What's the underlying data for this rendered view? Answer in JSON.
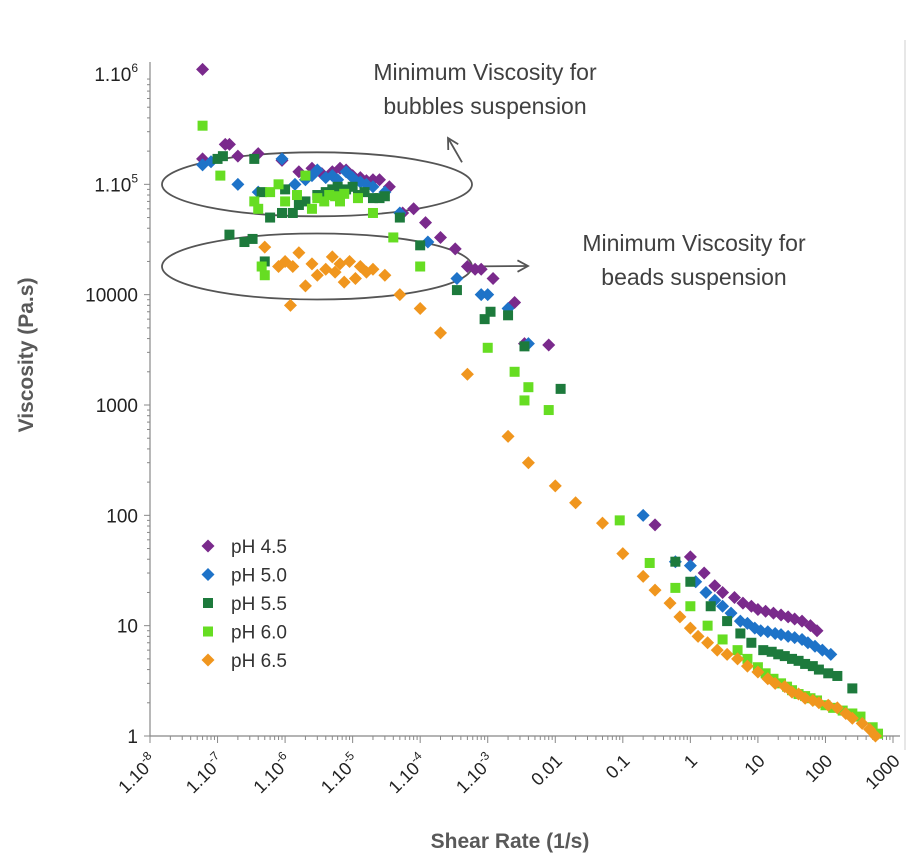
{
  "chart_data": {
    "type": "scatter",
    "title": "",
    "xlabel": "Shear Rate (1/s)",
    "ylabel": "Viscosity (Pa.s)",
    "xscale": "log",
    "yscale": "log",
    "xlim": [
      1e-08,
      1000
    ],
    "ylim": [
      1,
      1000000
    ],
    "grid": false,
    "legend_position": "bottom-left",
    "x_tick_labels": [
      {
        "value": 1e-08,
        "sup": "-8"
      },
      {
        "value": 1e-07,
        "sup": "-7"
      },
      {
        "value": 1e-06,
        "sup": "-6"
      },
      {
        "value": 1e-05,
        "sup": "-5"
      },
      {
        "value": 0.0001,
        "sup": "-4"
      },
      {
        "value": 0.001,
        "sup": "-3"
      },
      {
        "value": 0.01,
        "label": "0.01"
      },
      {
        "value": 0.1,
        "label": "0.1"
      },
      {
        "value": 1,
        "label": "1"
      },
      {
        "value": 10,
        "label": "10"
      },
      {
        "value": 100,
        "label": "100"
      },
      {
        "value": 1000,
        "label": "1000"
      }
    ],
    "y_tick_labels": [
      {
        "value": 1000000,
        "sup": "6"
      },
      {
        "value": 100000,
        "sup": "5"
      },
      {
        "value": 10000,
        "label": "10000"
      },
      {
        "value": 1000,
        "label": "1000"
      },
      {
        "value": 100,
        "label": "100"
      },
      {
        "value": 10,
        "label": "10"
      },
      {
        "value": 1,
        "label": "1"
      }
    ],
    "annotations": [
      {
        "lines": [
          "Minimum Viscosity for",
          "bubbles suspension"
        ],
        "ellipse_center": [
          1e-05,
          100000
        ]
      },
      {
        "lines": [
          "Minimum Viscosity for",
          "beads suspension"
        ],
        "ellipse_center": [
          1e-05,
          18000
        ]
      }
    ],
    "series": [
      {
        "name": "pH 4.5",
        "color": "#7a2a8c",
        "marker": "diamond",
        "points": [
          [
            6e-08,
            1100000
          ],
          [
            1.3e-07,
            230000
          ],
          [
            1.5e-07,
            230000
          ],
          [
            4e-07,
            190000
          ],
          [
            2e-07,
            180000
          ],
          [
            6e-08,
            170000
          ],
          [
            9e-07,
            165000
          ],
          [
            1.6e-06,
            130000
          ],
          [
            2.5e-06,
            140000
          ],
          [
            3.5e-06,
            125000
          ],
          [
            5e-06,
            130000
          ],
          [
            6.5e-06,
            140000
          ],
          [
            8e-06,
            135000
          ],
          [
            1e-05,
            120000
          ],
          [
            1.3e-05,
            115000
          ],
          [
            1.6e-05,
            108000
          ],
          [
            2e-05,
            110000
          ],
          [
            2.5e-05,
            110000
          ],
          [
            3.5e-05,
            95000
          ],
          [
            5.5e-05,
            55000
          ],
          [
            8e-05,
            60000
          ],
          [
            0.00012,
            45000
          ],
          [
            0.0002,
            33000
          ],
          [
            0.00033,
            26000
          ],
          [
            0.0005,
            18000
          ],
          [
            0.00065,
            17000
          ],
          [
            0.0008,
            17000
          ],
          [
            0.0012,
            14000
          ],
          [
            0.0025,
            8500
          ],
          [
            0.0035,
            3600
          ],
          [
            0.008,
            3500
          ],
          [
            0.3,
            82
          ],
          [
            1,
            42
          ],
          [
            1.6,
            30
          ],
          [
            2.3,
            23
          ],
          [
            3,
            20
          ],
          [
            4.5,
            18
          ],
          [
            6,
            16
          ],
          [
            8,
            15
          ],
          [
            10,
            14
          ],
          [
            13,
            13.5
          ],
          [
            17,
            13
          ],
          [
            22,
            12.5
          ],
          [
            28,
            12
          ],
          [
            35,
            11.5
          ],
          [
            45,
            11
          ],
          [
            60,
            10
          ],
          [
            75,
            9
          ]
        ]
      },
      {
        "name": "pH 5.0",
        "color": "#1e73c8",
        "marker": "diamond",
        "points": [
          [
            6e-08,
            150000
          ],
          [
            8e-08,
            160000
          ],
          [
            2e-07,
            100000
          ],
          [
            4e-07,
            85000
          ],
          [
            9e-07,
            170000
          ],
          [
            1.4e-06,
            100000
          ],
          [
            2e-06,
            110000
          ],
          [
            2.5e-06,
            120000
          ],
          [
            3e-06,
            135000
          ],
          [
            4e-06,
            115000
          ],
          [
            5e-06,
            120000
          ],
          [
            6e-06,
            110000
          ],
          [
            8e-06,
            130000
          ],
          [
            1e-05,
            115000
          ],
          [
            1.3e-05,
            105000
          ],
          [
            1.6e-05,
            100000
          ],
          [
            2e-05,
            95000
          ],
          [
            3e-05,
            85000
          ],
          [
            5e-05,
            55000
          ],
          [
            0.00013,
            30000
          ],
          [
            0.00035,
            14000
          ],
          [
            0.0008,
            10000
          ],
          [
            0.001,
            10000
          ],
          [
            0.002,
            7500
          ],
          [
            0.004,
            3600
          ],
          [
            0.2,
            100
          ],
          [
            0.6,
            38
          ],
          [
            1,
            35
          ],
          [
            1.2,
            25
          ],
          [
            1.7,
            20
          ],
          [
            2.3,
            17
          ],
          [
            3,
            15
          ],
          [
            4,
            13
          ],
          [
            5.5,
            11
          ],
          [
            7,
            10.5
          ],
          [
            9,
            9.5
          ],
          [
            11,
            9
          ],
          [
            14,
            8.8
          ],
          [
            18,
            8.5
          ],
          [
            22,
            8.3
          ],
          [
            28,
            8
          ],
          [
            35,
            7.8
          ],
          [
            45,
            7.5
          ],
          [
            55,
            7
          ],
          [
            70,
            6.5
          ],
          [
            90,
            6
          ],
          [
            120,
            5.5
          ]
        ]
      },
      {
        "name": "pH 5.5",
        "color": "#1d7a3c",
        "marker": "square",
        "points": [
          [
            1e-07,
            170000
          ],
          [
            1.2e-07,
            180000
          ],
          [
            1.5e-07,
            35000
          ],
          [
            2.5e-07,
            30000
          ],
          [
            3.3e-07,
            32000
          ],
          [
            3.5e-07,
            170000
          ],
          [
            4.5e-07,
            85000
          ],
          [
            5e-07,
            20000
          ],
          [
            6e-07,
            50000
          ],
          [
            9e-07,
            55000
          ],
          [
            1e-06,
            90000
          ],
          [
            1.3e-06,
            55000
          ],
          [
            1.6e-06,
            65000
          ],
          [
            2e-06,
            70000
          ],
          [
            3e-06,
            80000
          ],
          [
            4e-06,
            85000
          ],
          [
            5e-06,
            90000
          ],
          [
            6e-06,
            95000
          ],
          [
            8e-06,
            90000
          ],
          [
            1e-05,
            95000
          ],
          [
            1.2e-05,
            80000
          ],
          [
            1.5e-05,
            85000
          ],
          [
            2e-05,
            75000
          ],
          [
            2.5e-05,
            75000
          ],
          [
            3e-05,
            78000
          ],
          [
            5e-05,
            50000
          ],
          [
            0.0001,
            28000
          ],
          [
            0.00035,
            11000
          ],
          [
            0.0009,
            6000
          ],
          [
            0.0011,
            7000
          ],
          [
            0.002,
            6500
          ],
          [
            0.0035,
            3400
          ],
          [
            0.012,
            1400
          ],
          [
            0.6,
            38
          ],
          [
            1,
            25
          ],
          [
            2,
            15
          ],
          [
            3.5,
            11
          ],
          [
            5.5,
            8.5
          ],
          [
            8,
            7
          ],
          [
            12,
            6
          ],
          [
            16,
            5.8
          ],
          [
            20,
            5.5
          ],
          [
            25,
            5.3
          ],
          [
            32,
            5
          ],
          [
            40,
            4.8
          ],
          [
            50,
            4.5
          ],
          [
            65,
            4.3
          ],
          [
            80,
            4
          ],
          [
            110,
            3.7
          ],
          [
            150,
            3.5
          ],
          [
            250,
            2.7
          ]
        ]
      },
      {
        "name": "pH 6.0",
        "color": "#66dd22",
        "marker": "square",
        "points": [
          [
            6e-08,
            340000
          ],
          [
            1.1e-07,
            120000
          ],
          [
            3.5e-07,
            70000
          ],
          [
            4e-07,
            60000
          ],
          [
            4.5e-07,
            18000
          ],
          [
            5e-07,
            15000
          ],
          [
            6e-07,
            85000
          ],
          [
            8e-07,
            100000
          ],
          [
            1e-06,
            70000
          ],
          [
            1.5e-06,
            80000
          ],
          [
            2e-06,
            120000
          ],
          [
            2.5e-06,
            60000
          ],
          [
            3e-06,
            75000
          ],
          [
            3.8e-06,
            70000
          ],
          [
            4.5e-06,
            80000
          ],
          [
            5.5e-06,
            78000
          ],
          [
            6.5e-06,
            70000
          ],
          [
            7.5e-06,
            82000
          ],
          [
            1.2e-05,
            75000
          ],
          [
            2e-05,
            55000
          ],
          [
            4e-05,
            33000
          ],
          [
            0.0001,
            18000
          ],
          [
            0.001,
            3300
          ],
          [
            0.0025,
            2000
          ],
          [
            0.0035,
            1100
          ],
          [
            0.004,
            1450
          ],
          [
            0.008,
            900
          ],
          [
            0.09,
            90
          ],
          [
            0.25,
            37
          ],
          [
            0.6,
            22
          ],
          [
            1,
            15
          ],
          [
            1.8,
            10
          ],
          [
            3,
            7.5
          ],
          [
            5,
            6
          ],
          [
            7,
            5
          ],
          [
            10,
            4.2
          ],
          [
            13,
            3.7
          ],
          [
            17,
            3.3
          ],
          [
            22,
            3
          ],
          [
            27,
            2.8
          ],
          [
            32,
            2.6
          ],
          [
            40,
            2.4
          ],
          [
            50,
            2.3
          ],
          [
            60,
            2.2
          ],
          [
            75,
            2.1
          ],
          [
            100,
            1.9
          ],
          [
            130,
            1.8
          ],
          [
            180,
            1.7
          ],
          [
            250,
            1.6
          ],
          [
            330,
            1.5
          ],
          [
            500,
            1.2
          ],
          [
            600,
            1.05
          ]
        ]
      },
      {
        "name": "pH 6.5",
        "color": "#f0961e",
        "marker": "diamond",
        "points": [
          [
            5e-07,
            27000
          ],
          [
            8e-07,
            18000
          ],
          [
            1e-06,
            20000
          ],
          [
            1.2e-06,
            8000
          ],
          [
            1.3e-06,
            18000
          ],
          [
            1.6e-06,
            24000
          ],
          [
            2e-06,
            12000
          ],
          [
            2.5e-06,
            19000
          ],
          [
            3e-06,
            15000
          ],
          [
            4e-06,
            17000
          ],
          [
            5e-06,
            22000
          ],
          [
            5.5e-06,
            16000
          ],
          [
            6.5e-06,
            19000
          ],
          [
            7.5e-06,
            13000
          ],
          [
            9e-06,
            20000
          ],
          [
            1.1e-05,
            14000
          ],
          [
            1.3e-05,
            18000
          ],
          [
            1.6e-05,
            16000
          ],
          [
            2e-05,
            17000
          ],
          [
            3e-05,
            15000
          ],
          [
            5e-05,
            10000
          ],
          [
            0.0001,
            7500
          ],
          [
            0.0002,
            4500
          ],
          [
            0.0005,
            1900
          ],
          [
            0.002,
            520
          ],
          [
            0.004,
            300
          ],
          [
            0.01,
            185
          ],
          [
            0.02,
            130
          ],
          [
            0.05,
            85
          ],
          [
            0.1,
            45
          ],
          [
            0.2,
            28
          ],
          [
            0.3,
            21
          ],
          [
            0.5,
            16
          ],
          [
            0.7,
            12
          ],
          [
            1,
            9.5
          ],
          [
            1.3,
            8
          ],
          [
            1.8,
            7
          ],
          [
            2.5,
            6
          ],
          [
            3.5,
            5.5
          ],
          [
            5,
            5
          ],
          [
            7,
            4.3
          ],
          [
            10,
            3.8
          ],
          [
            14,
            3.3
          ],
          [
            18,
            3
          ],
          [
            25,
            2.8
          ],
          [
            32,
            2.5
          ],
          [
            40,
            2.4
          ],
          [
            50,
            2.2
          ],
          [
            65,
            2.1
          ],
          [
            80,
            2
          ],
          [
            110,
            1.9
          ],
          [
            150,
            1.8
          ],
          [
            200,
            1.6
          ],
          [
            250,
            1.45
          ],
          [
            350,
            1.3
          ],
          [
            450,
            1.15
          ],
          [
            550,
            1
          ]
        ]
      }
    ]
  }
}
